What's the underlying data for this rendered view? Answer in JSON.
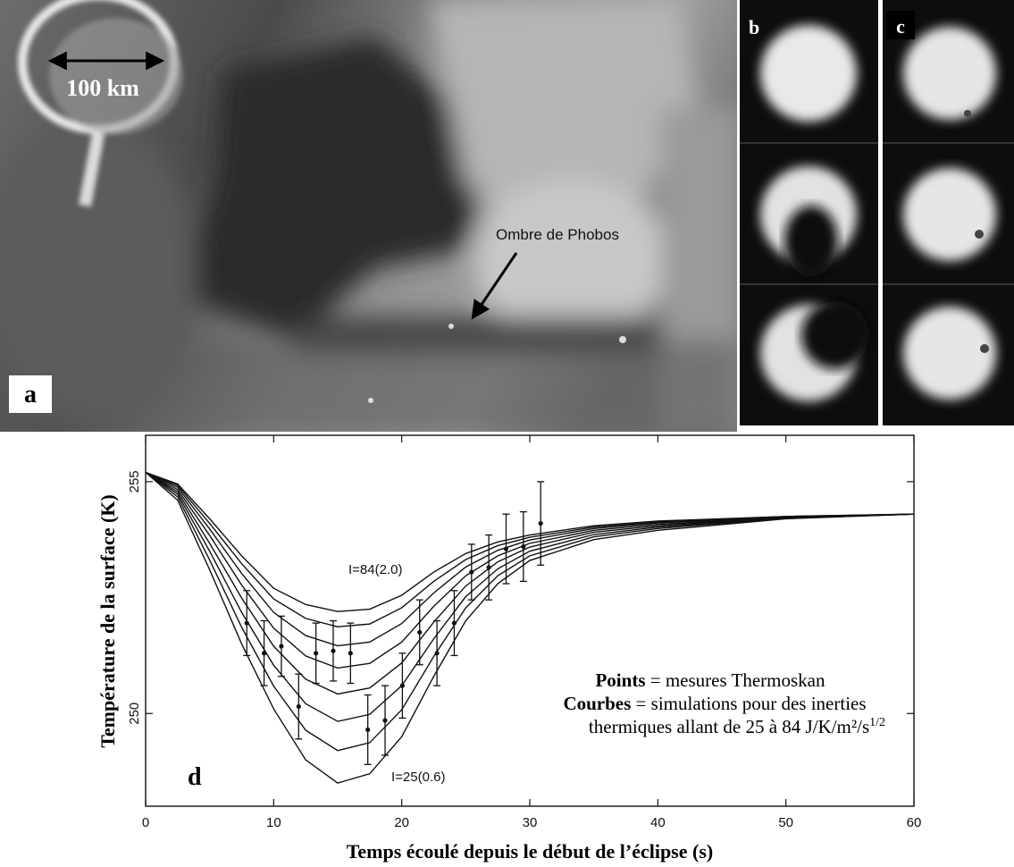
{
  "image_panels": {
    "a": {
      "letter": "a",
      "scale": "100 km",
      "shadow": "Ombre de Phobos"
    },
    "b": {
      "letter": "b"
    },
    "c": {
      "letter": "c"
    }
  },
  "chart_data": {
    "type": "line",
    "panel_letter": "d",
    "x_label": "Temps écoulé depuis le début de l’éclipse (s)",
    "y_label": "Température de la surface (K)",
    "xlim": [
      0,
      60
    ],
    "xticks": [
      0,
      10,
      20,
      30,
      40,
      50,
      60
    ],
    "ylim": [
      248,
      256
    ],
    "yticks": [
      250,
      255
    ],
    "grid": false,
    "x": [
      0,
      2.5,
      5,
      7.5,
      10,
      12.5,
      15,
      17.5,
      20,
      22.5,
      25,
      27.5,
      30,
      35,
      40,
      50,
      60
    ],
    "series": [
      {
        "color": "#111111",
        "values": [
          255.2,
          254.95,
          254.2,
          253.4,
          252.7,
          252.35,
          252.2,
          252.25,
          252.55,
          253.05,
          253.45,
          253.7,
          253.85,
          254.05,
          254.15,
          254.25,
          254.3
        ]
      },
      {
        "color": "#111111",
        "values": [
          255.2,
          254.92,
          254.1,
          253.23,
          252.47,
          252.05,
          251.87,
          251.93,
          252.28,
          252.85,
          253.32,
          253.62,
          253.8,
          254.02,
          254.13,
          254.25,
          254.3
        ]
      },
      {
        "color": "#111111",
        "values": [
          255.2,
          254.88,
          253.98,
          253.02,
          252.18,
          251.68,
          251.46,
          251.54,
          251.94,
          252.6,
          253.16,
          253.52,
          253.74,
          253.99,
          254.11,
          254.24,
          254.3
        ]
      },
      {
        "color": "#111111",
        "values": [
          255.2,
          254.83,
          253.84,
          252.77,
          251.84,
          251.24,
          250.98,
          251.08,
          251.54,
          252.31,
          252.97,
          253.4,
          253.67,
          253.95,
          254.08,
          254.23,
          254.3
        ]
      },
      {
        "color": "#111111",
        "values": [
          255.2,
          254.78,
          253.67,
          252.49,
          251.45,
          250.74,
          250.42,
          250.55,
          251.09,
          251.97,
          252.75,
          253.27,
          253.59,
          253.91,
          254.05,
          254.23,
          254.3
        ]
      },
      {
        "color": "#111111",
        "values": [
          255.2,
          254.73,
          253.5,
          252.18,
          251.04,
          250.21,
          249.83,
          249.98,
          250.6,
          251.61,
          252.52,
          253.12,
          253.5,
          253.86,
          254.02,
          254.22,
          254.3
        ]
      },
      {
        "color": "#111111",
        "values": [
          255.2,
          254.67,
          253.31,
          251.86,
          250.59,
          249.64,
          249.2,
          249.37,
          250.08,
          251.23,
          252.28,
          252.97,
          253.4,
          253.81,
          253.99,
          254.21,
          254.3
        ]
      },
      {
        "color": "#111111",
        "values": [
          255.2,
          254.6,
          253.1,
          251.5,
          250.1,
          249.0,
          248.5,
          248.7,
          249.5,
          250.8,
          252.0,
          252.8,
          253.3,
          253.75,
          253.95,
          254.2,
          254.3
        ]
      }
    ],
    "points": {
      "color": "#111111",
      "x": [
        7.9,
        9.25,
        10.6,
        11.95,
        13.3,
        14.65,
        16.0,
        17.35,
        18.7,
        20.05,
        21.4,
        22.75,
        24.1,
        25.45,
        26.8,
        28.15,
        29.5,
        30.85
      ],
      "values": [
        251.95,
        251.3,
        251.45,
        250.15,
        251.3,
        251.35,
        251.3,
        249.65,
        249.85,
        250.6,
        251.75,
        251.3,
        251.95,
        253.05,
        253.15,
        253.55,
        253.6,
        254.1
      ],
      "errors": [
        0.7,
        0.7,
        0.65,
        0.7,
        0.65,
        0.65,
        0.65,
        0.75,
        0.75,
        0.7,
        0.7,
        0.7,
        0.7,
        0.6,
        0.7,
        0.75,
        0.75,
        0.9
      ]
    },
    "curve_labels": [
      "I=84(2.0)",
      "I=25(0.6)"
    ],
    "legend_text": {
      "points_label": "Points",
      "points_text": " = mesures Thermoskan",
      "curves_label": "Courbes",
      "curves_text": " = simulations pour des inerties",
      "curves_text2": "thermiques allant de 25 à 84 J/K/m²/s",
      "superscript": "1/2"
    }
  }
}
